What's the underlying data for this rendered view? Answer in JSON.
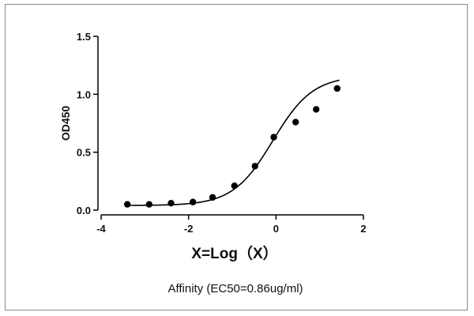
{
  "chart_data": {
    "type": "scatter",
    "title": "",
    "xlabel": "X=Log（X）",
    "ylabel": "OD450",
    "caption": "Affinity (EC50=0.86ug/ml)",
    "xlim": [
      -4,
      2
    ],
    "ylim": [
      0,
      1.5
    ],
    "x_ticks": [
      -4,
      -2,
      0,
      2
    ],
    "y_ticks": [
      0.0,
      0.5,
      1.0,
      1.5
    ],
    "x_tick_labels": [
      "-4",
      "-2",
      "0",
      "2"
    ],
    "y_tick_labels": [
      "0.0",
      "0.5",
      "1.0",
      "1.5"
    ],
    "grid": false,
    "series": [
      {
        "x": [
          -3.4,
          -2.9,
          -2.4,
          -1.9,
          -1.45,
          -0.95,
          -0.48,
          -0.05,
          0.45,
          0.92,
          1.4
        ],
        "y": [
          0.05,
          0.05,
          0.06,
          0.07,
          0.11,
          0.21,
          0.38,
          0.63,
          0.76,
          0.87,
          1.05
        ]
      }
    ],
    "fit_curve": {
      "model": "4PL",
      "bottom": 0.04,
      "top": 1.16,
      "log_ec50": -0.07,
      "hill_slope": 0.95,
      "x_range": [
        -3.45,
        1.45
      ]
    },
    "colors": {
      "points": "#000000",
      "curve": "#000000",
      "axes": "#000000"
    }
  }
}
